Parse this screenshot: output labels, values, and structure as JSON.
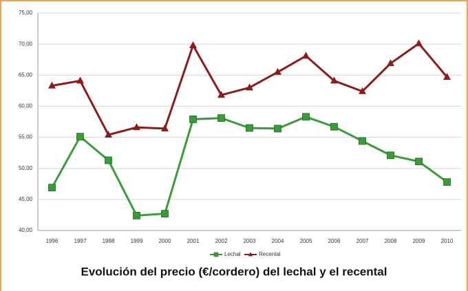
{
  "chart_data": {
    "type": "line",
    "caption": "Evolución del precio (€/cordero) del lechal y el recental",
    "categories": [
      "1996",
      "1997",
      "1998",
      "1999",
      "2000",
      "2001",
      "2002",
      "2003",
      "2004",
      "2005",
      "2006",
      "2007",
      "2008",
      "2009",
      "2010"
    ],
    "series": [
      {
        "name": "Lechal",
        "color": "#3b9b3b",
        "marker": "square",
        "values": [
          46.9,
          55.1,
          51.3,
          42.4,
          42.7,
          57.9,
          58.1,
          56.5,
          56.4,
          58.3,
          56.7,
          54.4,
          52.1,
          51.1,
          47.8
        ]
      },
      {
        "name": "Recental",
        "color": "#8c1c1c",
        "marker": "triangle",
        "values": [
          63.3,
          64.1,
          55.4,
          56.6,
          56.4,
          69.8,
          61.8,
          63.0,
          65.5,
          68.1,
          64.1,
          62.4,
          66.9,
          70.1,
          64.7
        ]
      }
    ],
    "ylim": [
      40,
      75
    ],
    "yticks": [
      {
        "value": 40,
        "label": "40,00"
      },
      {
        "value": 45,
        "label": "45,00"
      },
      {
        "value": 50,
        "label": "50,00"
      },
      {
        "value": 55,
        "label": "55,00"
      },
      {
        "value": 60,
        "label": "60,00"
      },
      {
        "value": 65,
        "label": "65,00"
      },
      {
        "value": 70,
        "label": "70,00"
      },
      {
        "value": 75,
        "label": "75,00"
      }
    ],
    "grid": true,
    "legend": "bottom"
  }
}
